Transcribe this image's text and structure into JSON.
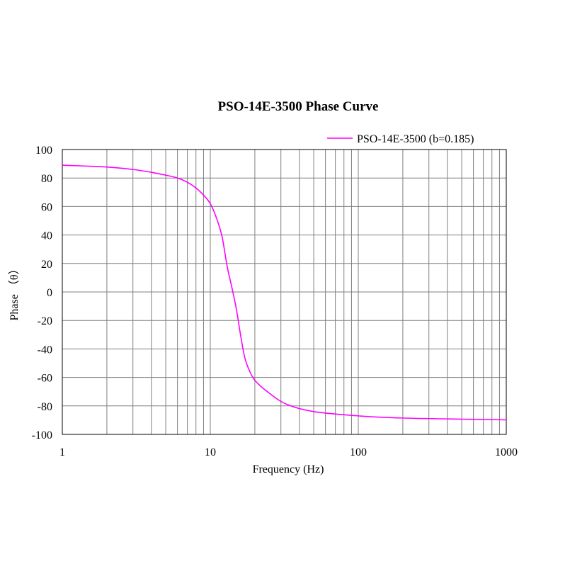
{
  "chart_data": {
    "type": "line",
    "title": "PSO-14E-3500 Phase Curve",
    "xlabel": "Frequency (Hz)",
    "ylabel": "Phase （θ）",
    "xscale": "log",
    "xlim": [
      1,
      1000
    ],
    "ylim": [
      -100,
      100
    ],
    "x_ticks": [
      1,
      10,
      100,
      1000
    ],
    "x_tick_labels": [
      "1",
      "10",
      "100",
      "1000"
    ],
    "y_ticks": [
      100,
      80,
      60,
      40,
      20,
      0,
      -20,
      -40,
      -60,
      -80,
      -100
    ],
    "y_tick_labels": [
      "100",
      "80",
      "60",
      "40",
      "20",
      "0",
      "-20",
      "-40",
      "-60",
      "-80",
      "-100"
    ],
    "grid": true,
    "legend_position": "top-right",
    "series": [
      {
        "name": "PSO-14E-3500 (b=0.185)",
        "color": "#ff00ff",
        "x": [
          1,
          2,
          3,
          4,
          5,
          6,
          7,
          8,
          9,
          10,
          11,
          12,
          13,
          14,
          15,
          16,
          17,
          18,
          20,
          25,
          33,
          50,
          100,
          200,
          500,
          1000
        ],
        "y": [
          89,
          87.7,
          86,
          84,
          82,
          80,
          77,
          73,
          68,
          62,
          52,
          39,
          18,
          3,
          -12,
          -30,
          -45,
          -53,
          -62,
          -71,
          -79,
          -84,
          -87,
          -88.5,
          -89.3,
          -89.8
        ]
      }
    ]
  }
}
